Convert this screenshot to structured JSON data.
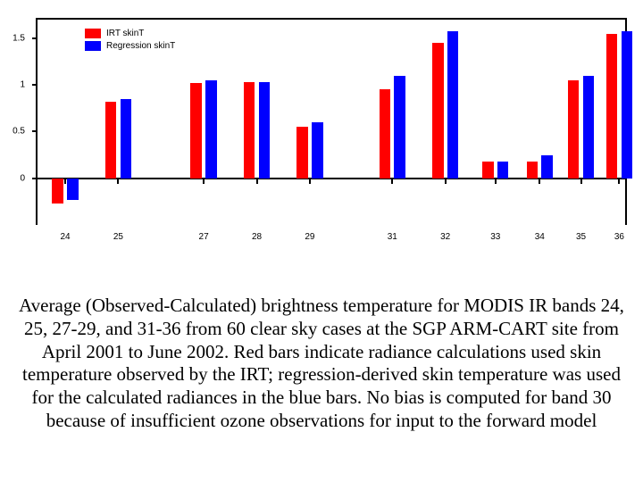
{
  "chart": {
    "type": "bar-grouped",
    "background_color": "#ffffff",
    "axis_color": "#000000",
    "series": [
      {
        "name": "IRT skinT",
        "color": "#ff0000"
      },
      {
        "name": "Regression skinT",
        "color": "#0000ff"
      }
    ],
    "categories": [
      "24",
      "25",
      "27",
      "28",
      "29",
      "31",
      "32",
      "33",
      "34",
      "35",
      "36"
    ],
    "category_x": [
      0.05,
      0.14,
      0.285,
      0.375,
      0.465,
      0.605,
      0.695,
      0.78,
      0.855,
      0.925,
      0.99
    ],
    "values_series1": [
      -0.27,
      0.82,
      1.02,
      1.03,
      0.55,
      0.95,
      1.45,
      0.18,
      0.18,
      1.05,
      1.55
    ],
    "values_series2": [
      -0.23,
      0.85,
      1.05,
      1.03,
      0.6,
      1.1,
      1.58,
      0.18,
      0.25,
      1.1,
      1.58
    ],
    "ylim": [
      -0.5,
      1.7
    ],
    "yticks": [
      0,
      0.5,
      1,
      1.5
    ],
    "ytick_labels": [
      "0",
      "0.5",
      "1",
      "1.5"
    ],
    "bar_width": 0.019,
    "bar_gap": 0.0065,
    "label_fontsize": 10
  },
  "caption": {
    "text": "Average (Observed-Calculated) brightness temperature for MODIS IR bands 24, 25, 27-29, and 31-36 from 60 clear sky cases at the SGP ARM-CART site from April 2001 to June 2002.  Red bars indicate radiance calculations used skin temperature observed by the IRT; regression-derived skin temperature was used for the calculated radiances in the blue bars.  No bias is computed for band 30 because of insufficient ozone observations for input to the forward model",
    "fontsize": 21,
    "font_family": "Times New Roman",
    "color": "#000000",
    "align": "center"
  }
}
